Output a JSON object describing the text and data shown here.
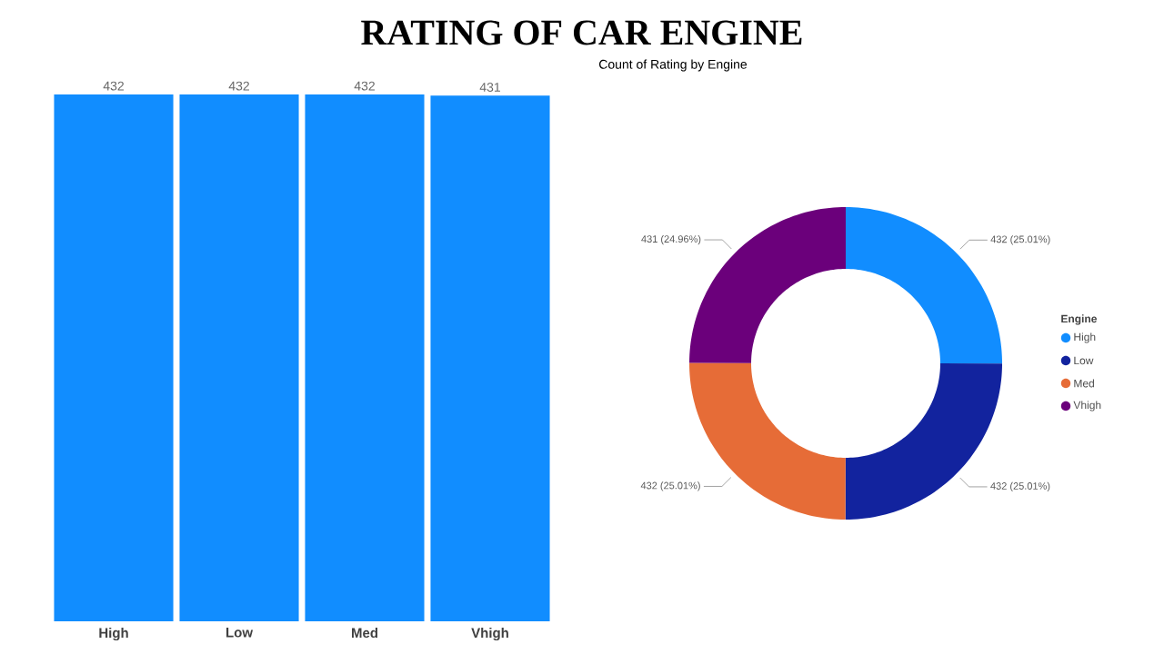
{
  "chart_data": [
    {
      "type": "bar",
      "title": "RATING OF CAR ENGINE",
      "categories": [
        "High",
        "Low",
        "Med",
        "Vhigh"
      ],
      "values": [
        432,
        432,
        432,
        431
      ],
      "color": "#118dff",
      "data_labels": true
    },
    {
      "type": "donut",
      "title": "Count of Rating by Engine",
      "categories": [
        "High",
        "Low",
        "Med",
        "Vhigh"
      ],
      "values": [
        432,
        432,
        432,
        431
      ],
      "colors": [
        "#118dff",
        "#12239e",
        "#e66c37",
        "#6b007b"
      ],
      "value_labels": [
        "432 (25.01%)",
        "432 (25.01%)",
        "432 (25.01%)",
        "431 (24.96%)"
      ],
      "legend": "right",
      "legend_title": "Engine"
    }
  ]
}
